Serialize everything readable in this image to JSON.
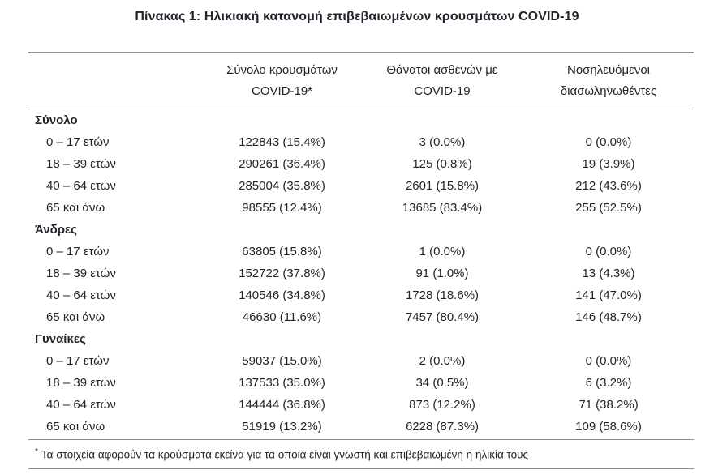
{
  "colors": {
    "text": "#20242c",
    "rule": "#8e8e8e",
    "background": "#ffffff"
  },
  "chart_data": {
    "type": "table",
    "title": "Πίνακας 1: Ηλικιακή κατανομή επιβεβαιωμένων κρουσμάτων COVID-19",
    "columns": [
      {
        "line1": "Σύνολο κρουσμάτων",
        "line2": "COVID-19*"
      },
      {
        "line1": "Θάνατοι ασθενών με",
        "line2": "COVID-19"
      },
      {
        "line1": "Νοσηλευόμενοι",
        "line2": "διασωληνωθέντες"
      }
    ],
    "sections": [
      {
        "label": "Σύνολο",
        "rows": [
          {
            "age": "0 – 17 ετών",
            "cases": "122843 (15.4%)",
            "deaths": "3 (0.0%)",
            "intubated": "0 (0.0%)"
          },
          {
            "age": "18 – 39 ετών",
            "cases": "290261 (36.4%)",
            "deaths": "125 (0.8%)",
            "intubated": "19 (3.9%)"
          },
          {
            "age": "40 – 64 ετών",
            "cases": "285004 (35.8%)",
            "deaths": "2601 (15.8%)",
            "intubated": "212 (43.6%)"
          },
          {
            "age": "65 και άνω",
            "cases": "98555 (12.4%)",
            "deaths": "13685 (83.4%)",
            "intubated": "255 (52.5%)"
          }
        ]
      },
      {
        "label": "Άνδρες",
        "rows": [
          {
            "age": "0 – 17 ετών",
            "cases": "63805 (15.8%)",
            "deaths": "1 (0.0%)",
            "intubated": "0 (0.0%)"
          },
          {
            "age": "18 – 39 ετών",
            "cases": "152722 (37.8%)",
            "deaths": "91 (1.0%)",
            "intubated": "13 (4.3%)"
          },
          {
            "age": "40 – 64 ετών",
            "cases": "140546 (34.8%)",
            "deaths": "1728 (18.6%)",
            "intubated": "141 (47.0%)"
          },
          {
            "age": "65 και άνω",
            "cases": "46630 (11.6%)",
            "deaths": "7457 (80.4%)",
            "intubated": "146 (48.7%)"
          }
        ]
      },
      {
        "label": "Γυναίκες",
        "rows": [
          {
            "age": "0 – 17 ετών",
            "cases": "59037 (15.0%)",
            "deaths": "2 (0.0%)",
            "intubated": "0 (0.0%)"
          },
          {
            "age": "18 – 39 ετών",
            "cases": "137533 (35.0%)",
            "deaths": "34 (0.5%)",
            "intubated": "6 (3.2%)"
          },
          {
            "age": "40 – 64 ετών",
            "cases": "144444 (36.8%)",
            "deaths": "873 (12.2%)",
            "intubated": "71 (38.2%)"
          },
          {
            "age": "65 και άνω",
            "cases": "51919 (13.2%)",
            "deaths": "6228 (87.3%)",
            "intubated": "109 (58.6%)"
          }
        ]
      }
    ],
    "footnote": {
      "marker": "*",
      "text": "Τα στοιχεία αφορούν τα κρούσματα εκείνα για τα οποία είναι γνωστή και επιβεβαιωμένη η ηλικία τους"
    }
  }
}
